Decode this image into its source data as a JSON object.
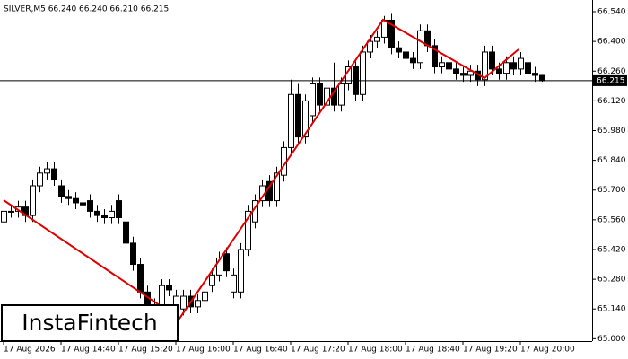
{
  "chart_data": {
    "type": "candlestick",
    "title": "SILVER,M5  66.240 66.240 66.210 66.215",
    "logo": "InstaFintech",
    "last_price": 66.215,
    "categories": [
      "17 Aug 2026",
      null,
      null,
      null,
      null,
      null,
      null,
      null,
      "17 Aug 14:40",
      null,
      null,
      null,
      null,
      null,
      null,
      null,
      "17 Aug 15:20",
      null,
      null,
      null,
      null,
      null,
      null,
      null,
      "17 Aug 16:00",
      null,
      null,
      null,
      null,
      null,
      null,
      null,
      "17 Aug 16:40",
      null,
      null,
      null,
      null,
      null,
      null,
      null,
      "17 Aug 17:20",
      null,
      null,
      null,
      null,
      null,
      null,
      null,
      "17 Aug 18:00",
      null,
      null,
      null,
      null,
      null,
      null,
      null,
      "17 Aug 18:40",
      null,
      null,
      null,
      null,
      null,
      null,
      null,
      "17 Aug 19:20",
      null,
      null,
      null,
      null,
      null,
      null,
      null,
      "17 Aug 20:00",
      null,
      null,
      null
    ],
    "open": [
      65.55,
      65.6,
      65.6,
      65.62,
      65.58,
      65.72,
      65.78,
      65.8,
      65.72,
      65.67,
      65.66,
      65.64,
      65.65,
      65.6,
      65.58,
      65.57,
      65.65,
      65.55,
      65.45,
      65.35,
      65.22,
      65.16,
      65.15,
      65.25,
      65.1,
      65.14,
      65.2,
      65.15,
      65.18,
      65.25,
      65.3,
      65.4,
      65.22,
      65.22,
      65.42,
      65.55,
      65.65,
      65.74,
      65.65,
      65.77,
      65.9,
      66.15,
      65.95,
      66.05,
      66.2,
      66.1,
      66.18,
      66.1,
      66.2,
      66.28,
      66.15,
      66.35,
      66.4,
      66.42,
      66.5,
      66.37,
      66.35,
      66.32,
      66.3,
      66.45,
      66.38,
      66.28,
      66.3,
      66.27,
      66.25,
      66.24,
      66.26,
      66.22,
      66.35,
      66.27,
      66.25,
      66.3,
      66.27,
      66.3,
      66.25,
      66.24
    ],
    "high": [
      65.63,
      65.63,
      65.65,
      65.65,
      65.75,
      65.81,
      65.83,
      65.83,
      65.75,
      65.7,
      65.69,
      65.67,
      65.68,
      65.63,
      65.61,
      65.63,
      65.68,
      65.58,
      65.48,
      65.38,
      65.25,
      65.19,
      65.28,
      65.28,
      65.23,
      65.23,
      65.23,
      65.21,
      65.25,
      65.33,
      65.41,
      65.43,
      65.33,
      65.45,
      65.63,
      65.68,
      65.75,
      65.77,
      65.81,
      65.93,
      66.22,
      66.2,
      66.15,
      66.23,
      66.23,
      66.21,
      66.3,
      66.23,
      66.31,
      66.31,
      66.38,
      66.43,
      66.45,
      66.52,
      66.53,
      66.4,
      66.38,
      66.35,
      66.48,
      66.48,
      66.41,
      66.33,
      66.33,
      66.3,
      66.28,
      66.29,
      66.29,
      66.38,
      66.38,
      66.3,
      66.33,
      66.33,
      66.35,
      66.33,
      66.28,
      66.24
    ],
    "low": [
      65.52,
      65.57,
      65.57,
      65.55,
      65.55,
      65.69,
      65.75,
      65.72,
      65.64,
      65.63,
      65.61,
      65.6,
      65.57,
      65.55,
      65.54,
      65.54,
      65.54,
      65.42,
      65.32,
      65.19,
      65.12,
      65.12,
      65.12,
      65.2,
      65.07,
      65.11,
      65.12,
      65.12,
      65.15,
      65.22,
      65.27,
      65.29,
      65.19,
      65.19,
      65.39,
      65.52,
      65.62,
      65.62,
      65.62,
      65.74,
      65.87,
      65.92,
      65.92,
      66.02,
      66.07,
      66.07,
      66.07,
      66.07,
      66.17,
      66.12,
      66.12,
      66.32,
      66.37,
      66.39,
      66.34,
      66.32,
      66.29,
      66.27,
      66.27,
      66.35,
      66.25,
      66.25,
      66.24,
      66.22,
      66.21,
      66.21,
      66.19,
      66.19,
      66.24,
      66.22,
      66.22,
      66.24,
      66.24,
      66.22,
      66.21,
      66.21
    ],
    "close": [
      65.6,
      65.6,
      65.62,
      65.58,
      65.72,
      65.78,
      65.8,
      65.75,
      65.67,
      65.66,
      65.64,
      65.63,
      65.6,
      65.58,
      65.57,
      65.6,
      65.57,
      65.45,
      65.35,
      65.22,
      65.15,
      65.15,
      65.25,
      65.23,
      65.2,
      65.2,
      65.15,
      65.18,
      65.22,
      65.3,
      65.38,
      65.32,
      65.3,
      65.42,
      65.6,
      65.65,
      65.72,
      65.65,
      65.78,
      65.9,
      66.15,
      65.95,
      66.12,
      66.2,
      66.1,
      66.18,
      66.1,
      66.2,
      66.28,
      66.15,
      66.35,
      66.4,
      66.42,
      66.5,
      66.37,
      66.35,
      66.32,
      66.3,
      66.45,
      66.38,
      66.28,
      66.3,
      66.27,
      66.25,
      66.24,
      66.26,
      66.22,
      66.35,
      66.27,
      66.25,
      66.3,
      66.27,
      66.32,
      66.25,
      66.24,
      66.215
    ],
    "up_color": "#ffffff",
    "down_color": "#000000",
    "ylim": [
      64.9888,
      66.595
    ],
    "yticks": [
      {
        "value": 66.54,
        "label": "66.540"
      },
      {
        "value": 66.4,
        "label": "66.400"
      },
      {
        "value": 66.26,
        "label": "66.260"
      },
      {
        "value": 66.12,
        "label": "66.120"
      },
      {
        "value": 65.98,
        "label": "65.980"
      },
      {
        "value": 65.84,
        "label": "65.840"
      },
      {
        "value": 65.7,
        "label": "65.700"
      },
      {
        "value": 65.56,
        "label": "65.560"
      },
      {
        "value": 65.42,
        "label": "65.420"
      },
      {
        "value": 65.28,
        "label": "65.280"
      },
      {
        "value": 65.14,
        "label": "65.140"
      },
      {
        "value": 65,
        "label": "65.000"
      }
    ]
  }
}
